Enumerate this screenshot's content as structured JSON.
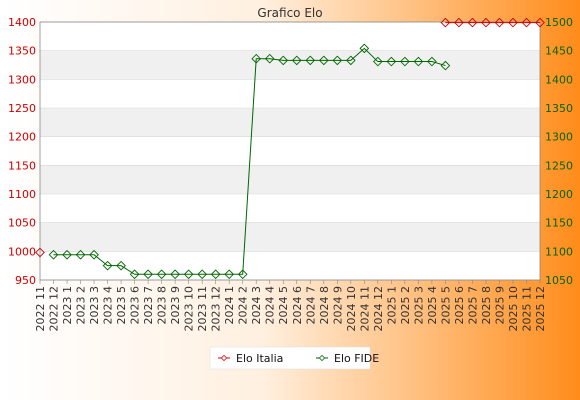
{
  "chart_data": {
    "type": "line",
    "title": "Grafico Elo",
    "categories": [
      "2022 11",
      "2022 12",
      "2023 1",
      "2023 2",
      "2023 3",
      "2023 4",
      "2023 5",
      "2023 6",
      "2023 7",
      "2023 8",
      "2023 9",
      "2023 10",
      "2023 11",
      "2023 12",
      "2024 1",
      "2024 2",
      "2024 3",
      "2024 4",
      "2024 5",
      "2024 6",
      "2024 7",
      "2024 8",
      "2024 9",
      "2024 10",
      "2024 11",
      "2024 12",
      "2025 1",
      "2025 2",
      "2025 3",
      "2025 4",
      "2025 5",
      "2025 6",
      "2025 7",
      "2025 8",
      "2025 9",
      "2025 10",
      "2025 11",
      "2025 12"
    ],
    "y_left": {
      "range": [
        950,
        1400
      ],
      "ticks": [
        950,
        1000,
        1050,
        1100,
        1150,
        1200,
        1250,
        1300,
        1350,
        1400
      ],
      "color": "#cc0000"
    },
    "y_right": {
      "range": [
        1050,
        1500
      ],
      "ticks": [
        1050,
        1100,
        1150,
        1200,
        1250,
        1300,
        1350,
        1400,
        1450,
        1500
      ],
      "color": "#006600"
    },
    "series": [
      {
        "name": "Elo Italia",
        "axis": "left",
        "color": "#cc0000",
        "values": [
          998,
          null,
          null,
          null,
          null,
          null,
          null,
          null,
          null,
          null,
          null,
          null,
          null,
          null,
          null,
          null,
          null,
          null,
          null,
          null,
          null,
          null,
          null,
          null,
          null,
          null,
          null,
          null,
          null,
          null,
          1399,
          1399,
          1399,
          1399,
          1399,
          1399,
          1399,
          1399
        ]
      },
      {
        "name": "Elo FIDE",
        "axis": "right",
        "color": "#006600",
        "values": [
          null,
          1094,
          1094,
          1094,
          1094,
          1075,
          1075,
          1060,
          1060,
          1060,
          1060,
          1060,
          1060,
          1060,
          1060,
          1060,
          1436,
          1436,
          1433,
          1433,
          1433,
          1433,
          1433,
          1433,
          1454,
          1431,
          1431,
          1431,
          1431,
          1431,
          1424,
          null,
          null,
          null,
          null,
          null,
          null,
          null
        ]
      }
    ],
    "grid": "horizontal",
    "legend_position": "bottom-center"
  }
}
